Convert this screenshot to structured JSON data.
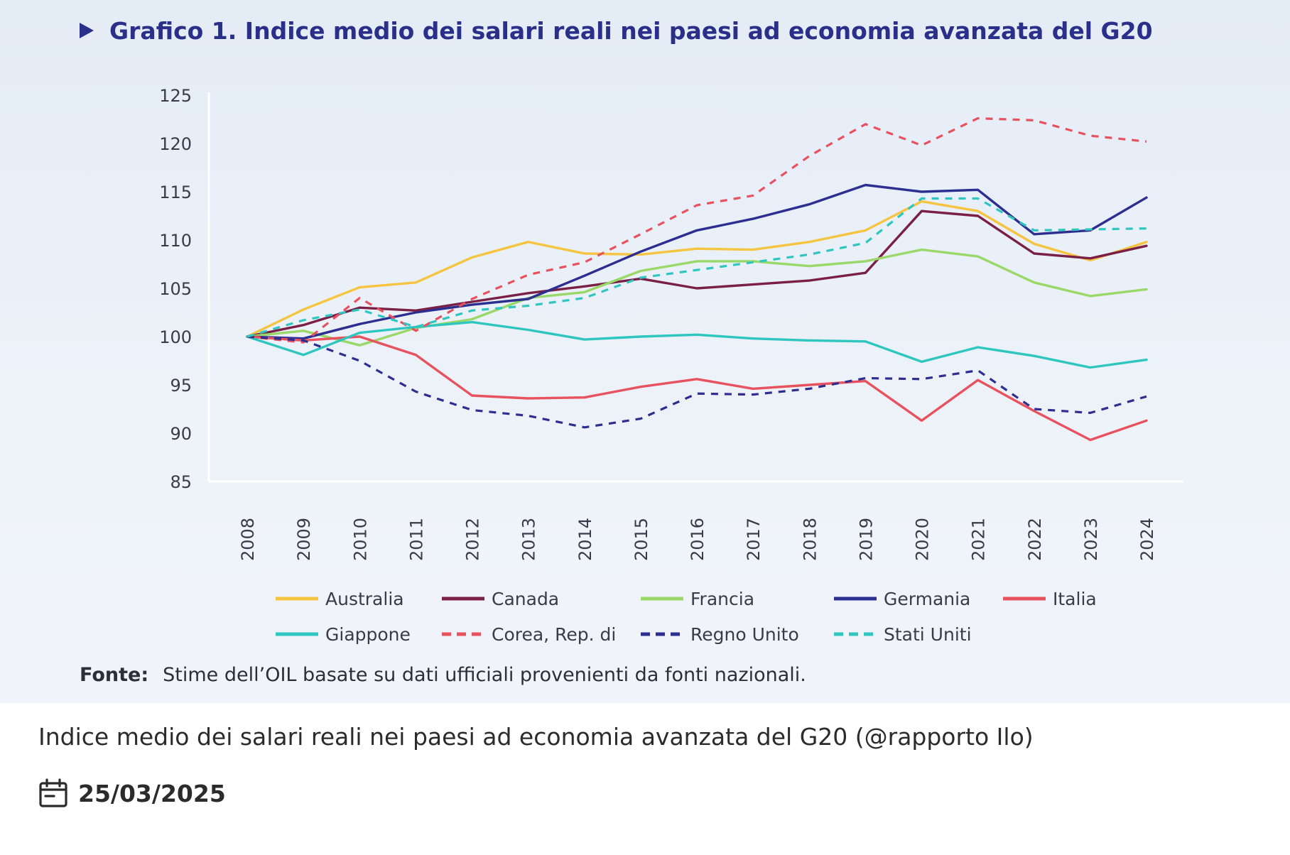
{
  "figure_title": "Grafico 1. Indice medio dei salari reali nei paesi ad economia avanzata del G20",
  "source_label": "Fonte:",
  "source_text": "Stime dell’OIL basate su dati ufficiali provenienti da fonti nazionali.",
  "caption": "Indice medio dei salari reali nei paesi ad economia avanzata del G20 (@rapporto Ilo)",
  "date": "25/03/2025",
  "date_icon": "calendar-icon",
  "chart_data": {
    "type": "line",
    "title": "Grafico 1. Indice medio dei salari reali nei paesi ad economia avanzata del G20",
    "xlabel": "",
    "ylabel": "",
    "ylim": [
      85,
      125
    ],
    "yticks": [
      85,
      90,
      95,
      100,
      105,
      110,
      115,
      120,
      125
    ],
    "grid": false,
    "legend_position": "bottom",
    "categories": [
      "2008",
      "2009",
      "2010",
      "2011",
      "2012",
      "2013",
      "2014",
      "2015",
      "2016",
      "2017",
      "2018",
      "2019",
      "2020",
      "2021",
      "2022",
      "2023",
      "2024"
    ],
    "series": [
      {
        "name": "Australia",
        "color": "#f5c441",
        "dash": false,
        "values": [
          100,
          102.8,
          105.1,
          105.6,
          108.2,
          109.8,
          108.6,
          108.5,
          109.1,
          109.0,
          109.8,
          111.0,
          114.0,
          113.0,
          109.6,
          107.9,
          109.8
        ]
      },
      {
        "name": "Canada",
        "color": "#7a1f45",
        "dash": false,
        "values": [
          100,
          101.2,
          103.0,
          102.7,
          103.6,
          104.5,
          105.2,
          106.0,
          105.0,
          105.4,
          105.8,
          106.6,
          113.0,
          112.5,
          108.6,
          108.1,
          109.4
        ]
      },
      {
        "name": "Francia",
        "color": "#9ad86a",
        "dash": false,
        "values": [
          100,
          100.6,
          99.1,
          100.9,
          101.8,
          104.0,
          104.6,
          106.8,
          107.8,
          107.8,
          107.3,
          107.8,
          109.0,
          108.3,
          105.6,
          104.2,
          104.9
        ]
      },
      {
        "name": "Germania",
        "color": "#2c2f90",
        "dash": false,
        "values": [
          100,
          99.8,
          101.3,
          102.5,
          103.3,
          103.9,
          106.3,
          108.8,
          111.0,
          112.2,
          113.7,
          115.7,
          115.0,
          115.2,
          110.6,
          111.0,
          114.4
        ]
      },
      {
        "name": "Italia",
        "color": "#e8525f",
        "dash": false,
        "values": [
          100,
          99.6,
          100.0,
          98.1,
          93.9,
          93.6,
          93.7,
          94.8,
          95.6,
          94.6,
          95.0,
          95.4,
          91.3,
          95.5,
          92.3,
          89.3,
          91.3
        ]
      },
      {
        "name": "Giappone",
        "color": "#2fc6c0",
        "dash": false,
        "values": [
          100,
          98.1,
          100.4,
          101.0,
          101.5,
          100.7,
          99.7,
          100.0,
          100.2,
          99.8,
          99.6,
          99.5,
          97.4,
          98.9,
          98.0,
          96.8,
          97.6
        ]
      },
      {
        "name": "Corea, Rep. di",
        "color": "#e8525f",
        "dash": true,
        "values": [
          100,
          99.4,
          104.0,
          100.6,
          103.9,
          106.4,
          107.7,
          110.6,
          113.6,
          114.6,
          118.7,
          122.0,
          119.8,
          122.6,
          122.4,
          120.8,
          120.2
        ]
      },
      {
        "name": "Regno Unito",
        "color": "#2c2f90",
        "dash": true,
        "values": [
          100,
          99.6,
          97.5,
          94.3,
          92.4,
          91.8,
          90.6,
          91.5,
          94.1,
          94.0,
          94.6,
          95.7,
          95.6,
          96.5,
          92.5,
          92.1,
          93.8
        ]
      },
      {
        "name": "Stati Uniti",
        "color": "#2fc6c0",
        "dash": true,
        "values": [
          100,
          101.7,
          102.8,
          101.0,
          102.7,
          103.2,
          104.0,
          106.1,
          106.9,
          107.7,
          108.5,
          109.7,
          114.3,
          114.3,
          111.0,
          111.1,
          111.2
        ]
      }
    ]
  }
}
